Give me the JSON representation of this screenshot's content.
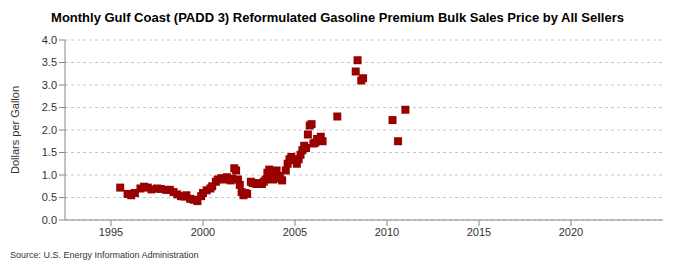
{
  "chart_data": {
    "type": "scatter",
    "title": "Monthly Gulf Coast (PADD 3) Reformulated Gasoline Premium Bulk Sales Price by All Sellers",
    "y_label": "Dollars per Gallon",
    "source": "Source: U.S. Energy Information Administration",
    "x": [
      1995.5,
      1995.9,
      1996.1,
      1996.3,
      1996.6,
      1996.8,
      1997.0,
      1997.2,
      1997.5,
      1997.7,
      1998.0,
      1998.2,
      1998.4,
      1998.6,
      1998.8,
      1999.0,
      1999.1,
      1999.3,
      1999.5,
      1999.7,
      1999.9,
      2000.0,
      2000.2,
      2000.4,
      2000.5,
      2000.7,
      2000.8,
      2001.0,
      2001.2,
      2001.3,
      2001.5,
      2001.6,
      2001.7,
      2001.8,
      2001.9,
      2002.0,
      2002.1,
      2002.2,
      2002.3,
      2002.4,
      2002.6,
      2002.7,
      2002.9,
      2003.0,
      2003.2,
      2003.3,
      2003.4,
      2003.5,
      2003.6,
      2003.7,
      2003.8,
      2003.9,
      2004.0,
      2004.1,
      2004.2,
      2004.3,
      2004.5,
      2004.6,
      2004.7,
      2004.8,
      2005.0,
      2005.1,
      2005.2,
      2005.3,
      2005.4,
      2005.5,
      2005.6,
      2005.7,
      2005.8,
      2005.9,
      2006.0,
      2006.1,
      2006.2,
      2006.4,
      2006.5,
      2007.3,
      2008.3,
      2008.4,
      2008.6,
      2008.7,
      2010.3,
      2010.6,
      2011.0
    ],
    "values": [
      0.72,
      0.58,
      0.55,
      0.6,
      0.7,
      0.74,
      0.72,
      0.68,
      0.7,
      0.69,
      0.67,
      0.67,
      0.62,
      0.57,
      0.53,
      0.52,
      0.55,
      0.47,
      0.45,
      0.42,
      0.53,
      0.6,
      0.66,
      0.7,
      0.75,
      0.85,
      0.9,
      0.93,
      0.9,
      0.95,
      0.88,
      0.92,
      1.15,
      1.1,
      0.9,
      0.78,
      0.62,
      0.55,
      0.6,
      0.58,
      0.85,
      0.82,
      0.8,
      0.82,
      0.8,
      0.85,
      0.9,
      1.05,
      1.12,
      0.95,
      0.9,
      1.0,
      1.1,
      0.98,
      0.92,
      0.88,
      1.1,
      1.25,
      1.35,
      1.4,
      1.33,
      1.25,
      1.35,
      1.45,
      1.55,
      1.65,
      1.6,
      1.9,
      2.1,
      2.13,
      1.7,
      1.72,
      1.8,
      1.85,
      1.75,
      2.3,
      3.3,
      3.55,
      3.1,
      3.15,
      2.22,
      1.75,
      2.45
    ],
    "color": "#990000",
    "marker": "square",
    "xlim": [
      1992.5,
      2025
    ],
    "xticks": [
      1995,
      2000,
      2005,
      2010,
      2015,
      2020
    ],
    "ylim": [
      0,
      4
    ],
    "yticks": [
      {
        "value": 0,
        "label": "0.0"
      },
      {
        "value": 0.5,
        "label": "0.5"
      },
      {
        "value": 1,
        "label": "1.0"
      },
      {
        "value": 1.5,
        "label": "1.5"
      },
      {
        "value": 2,
        "label": "2.0"
      },
      {
        "value": 2.5,
        "label": "2.5"
      },
      {
        "value": 3,
        "label": "3.0"
      },
      {
        "value": 3.5,
        "label": "3.5"
      },
      {
        "value": 4,
        "label": "4.0"
      }
    ],
    "grid": true
  }
}
